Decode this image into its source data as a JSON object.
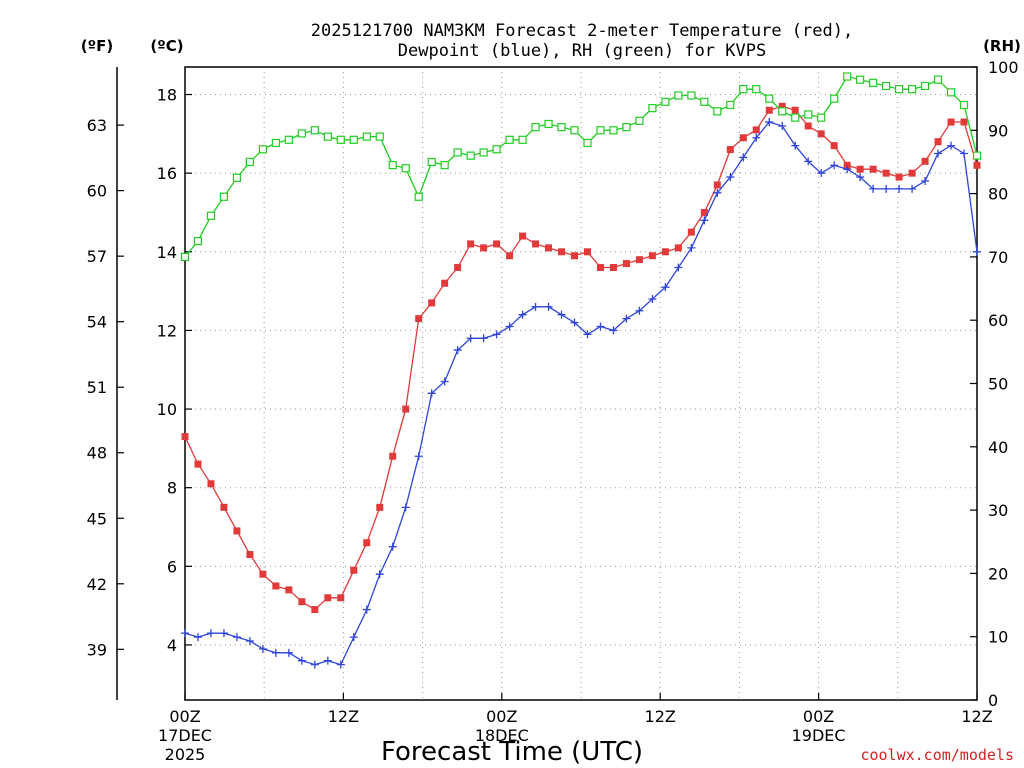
{
  "chart_data": {
    "type": "line",
    "title_line1": "2025121700 NAM3KM Forecast 2-meter Temperature (red),",
    "title_line2": "Dewpoint (blue), RH (green) for KVPS",
    "xlabel": "Forecast Time (UTC)",
    "units_f": "(ºF)",
    "units_c": "(ºC)",
    "units_rh": "(RH)",
    "credit": "coolwx.com/models",
    "x_range": [
      0,
      60
    ],
    "celsius_range": [
      2.6,
      18.7
    ],
    "rh_range": [
      0,
      100
    ],
    "x_ticks": [
      {
        "x": 0,
        "label": "00Z",
        "date": "17DEC",
        "year": "2025"
      },
      {
        "x": 12,
        "label": "12Z",
        "date": "",
        "year": ""
      },
      {
        "x": 24,
        "label": "00Z",
        "date": "18DEC",
        "year": ""
      },
      {
        "x": 36,
        "label": "12Z",
        "date": "",
        "year": ""
      },
      {
        "x": 48,
        "label": "00Z",
        "date": "19DEC",
        "year": ""
      },
      {
        "x": 60,
        "label": "12Z",
        "date": "",
        "year": ""
      }
    ],
    "celsius_ticks": [
      4,
      6,
      8,
      10,
      12,
      14,
      16,
      18
    ],
    "fahrenheit_ticks": [
      39,
      42,
      45,
      48,
      51,
      54,
      57,
      60,
      63
    ],
    "rh_ticks": [
      0,
      10,
      20,
      30,
      40,
      50,
      60,
      70,
      80,
      90,
      100
    ],
    "series": [
      {
        "name": "2-meter Temperature (°C)",
        "color": "#e23a3a",
        "axis": "celsius",
        "values": [
          9.3,
          8.6,
          8.1,
          7.5,
          6.9,
          6.3,
          5.8,
          5.5,
          5.4,
          5.1,
          4.9,
          5.2,
          5.2,
          5.9,
          6.6,
          7.5,
          8.8,
          10.0,
          12.3,
          12.7,
          13.2,
          13.6,
          14.2,
          14.1,
          14.2,
          13.9,
          14.4,
          14.2,
          14.1,
          14.0,
          13.9,
          14.0,
          13.6,
          13.6,
          13.7,
          13.8,
          13.9,
          14.0,
          14.1,
          14.5,
          15.0,
          15.7,
          16.6,
          16.9,
          17.1,
          17.6,
          17.7,
          17.6,
          17.2,
          17.0,
          16.7,
          16.2,
          16.1,
          16.1,
          16.0,
          15.9,
          16.0,
          16.3,
          16.8,
          17.3,
          17.3,
          16.2
        ]
      },
      {
        "name": "Dewpoint (°C)",
        "color": "#2f45d8",
        "axis": "celsius",
        "values": [
          4.3,
          4.2,
          4.3,
          4.3,
          4.2,
          4.1,
          3.9,
          3.8,
          3.8,
          3.6,
          3.5,
          3.6,
          3.5,
          4.2,
          4.9,
          5.8,
          6.5,
          7.5,
          8.8,
          10.4,
          10.7,
          11.5,
          11.8,
          11.8,
          11.9,
          12.1,
          12.4,
          12.6,
          12.6,
          12.4,
          12.2,
          11.9,
          12.1,
          12.0,
          12.3,
          12.5,
          12.8,
          13.1,
          13.6,
          14.1,
          14.8,
          15.5,
          15.9,
          16.4,
          16.9,
          17.3,
          17.2,
          16.7,
          16.3,
          16.0,
          16.2,
          16.1,
          15.9,
          15.6,
          15.6,
          15.6,
          15.6,
          15.8,
          16.5,
          16.7,
          16.5,
          14.0
        ]
      },
      {
        "name": "RH (%)",
        "color": "#22cc22",
        "axis": "rh",
        "values": [
          70,
          72.5,
          76.5,
          79.5,
          82.5,
          85,
          87,
          88,
          88.5,
          89.5,
          90,
          89,
          88.5,
          88.5,
          89,
          89,
          84.5,
          84,
          79.5,
          85,
          84.5,
          86.5,
          86,
          86.5,
          87,
          88.5,
          88.5,
          90.5,
          91,
          90.5,
          90,
          88,
          90,
          90,
          90.5,
          91.5,
          93.5,
          94.5,
          95.5,
          95.5,
          94.5,
          93,
          94,
          96.5,
          96.5,
          95,
          93,
          92,
          92.5,
          92,
          95,
          98.5,
          98,
          97.5,
          97,
          96.5,
          96.5,
          97,
          98,
          96,
          94,
          86
        ]
      }
    ]
  }
}
